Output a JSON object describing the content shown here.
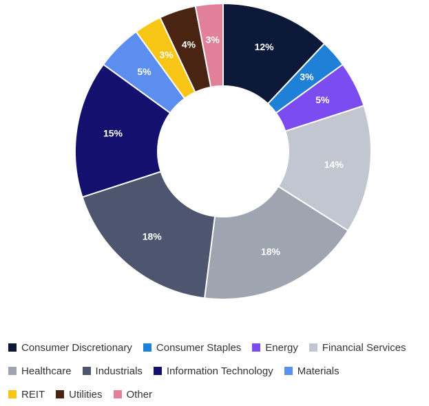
{
  "chart_data": {
    "type": "donut",
    "categories": [
      "Consumer Discretionary",
      "Consumer Staples",
      "Energy",
      "Financial Services",
      "Healthcare",
      "Industrials",
      "Information Technology",
      "Materials",
      "REIT",
      "Utilities",
      "Other"
    ],
    "values": [
      12,
      3,
      5,
      14,
      18,
      18,
      15,
      5,
      3,
      4,
      3
    ],
    "value_labels": [
      "12%",
      "3%",
      "5%",
      "14%",
      "18%",
      "18%",
      "15%",
      "5%",
      "3%",
      "4%",
      "3%"
    ],
    "colors": [
      "#0b1838",
      "#1f80d8",
      "#7b4cf0",
      "#c2c6d0",
      "#9fa4b1",
      "#4d566e",
      "#14116e",
      "#5c8ef0",
      "#f6c516",
      "#4a2412",
      "#e2809a"
    ],
    "legend": "bottom"
  }
}
